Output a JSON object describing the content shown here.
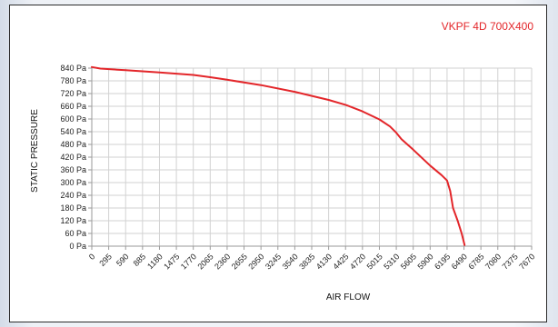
{
  "chart_data": {
    "type": "line",
    "title": "VKPF 4D 700X400",
    "xlabel": "AIR FLOW",
    "ylabel": "STATIC PRESSURE",
    "x_ticks": [
      "0",
      "295",
      "590",
      "885",
      "1180",
      "1475",
      "1770",
      "2065",
      "2360",
      "2655",
      "2950",
      "3245",
      "3540",
      "3835",
      "4130",
      "4425",
      "4720",
      "5015",
      "5310",
      "5605",
      "5900",
      "6195",
      "6490",
      "6785",
      "7080",
      "7375",
      "7670"
    ],
    "y_ticks": [
      "0 Pa",
      "60 Pa",
      "120 Pa",
      "180 Pa",
      "240 Pa",
      "300 Pa",
      "360 Pa",
      "420 Pa",
      "480 Pa",
      "540 Pa",
      "600 Pa",
      "660 Pa",
      "720 Pa",
      "780 Pa",
      "840 Pa"
    ],
    "xlim": [
      0,
      7670
    ],
    "ylim": [
      0,
      840
    ],
    "grid": true,
    "colors": {
      "series": "#e3262a",
      "title": "#e3262a"
    },
    "series": [
      {
        "x": [
          0,
          150,
          590,
          1180,
          1770,
          2065,
          2360,
          2950,
          3540,
          4130,
          4425,
          4720,
          5015,
          5200,
          5310,
          5400,
          5605,
          5900,
          6100,
          6195,
          6250,
          6300,
          6380,
          6450,
          6500
        ],
        "y": [
          845,
          838,
          830,
          820,
          808,
          797,
          785,
          760,
          728,
          690,
          667,
          636,
          598,
          565,
          535,
          505,
          455,
          380,
          335,
          310,
          260,
          180,
          120,
          60,
          5
        ]
      }
    ]
  }
}
